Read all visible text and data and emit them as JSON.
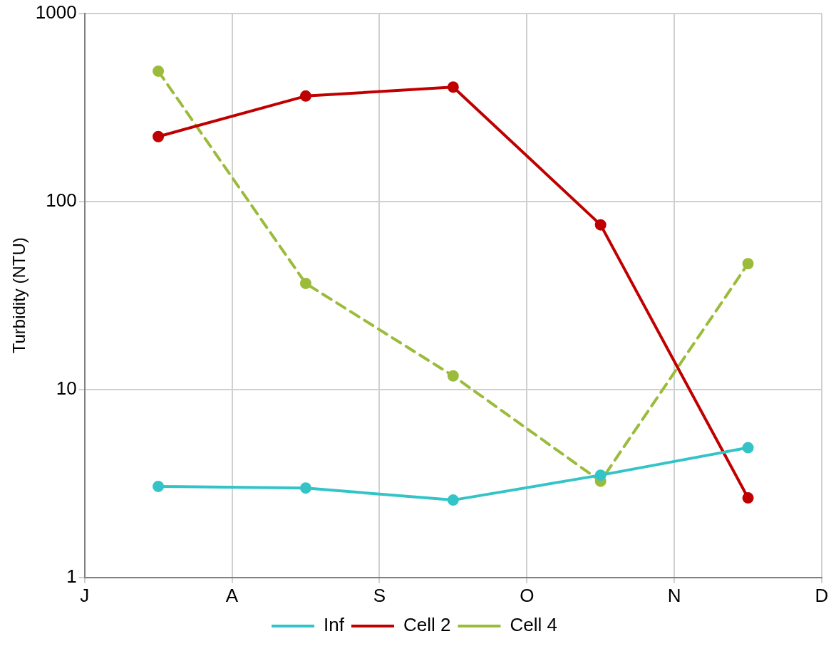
{
  "chart_data": {
    "type": "line",
    "ylabel": "Turbidity (NTU)",
    "categories": [
      "J",
      null,
      "A",
      null,
      "S",
      null,
      "O",
      null,
      "N",
      null,
      "D"
    ],
    "series": [
      {
        "name": "Inf",
        "color": "#33c4c8",
        "values": [
          null,
          3.05,
          null,
          2.99,
          null,
          2.58,
          null,
          3.5,
          null,
          4.9,
          null
        ]
      },
      {
        "name": "Cell 2",
        "color": "#c00000",
        "values": [
          null,
          221,
          null,
          363,
          null,
          405,
          null,
          75,
          null,
          2.65,
          null
        ]
      },
      {
        "name": "Cell 4",
        "color": "#9bbb3b",
        "line_style": "dashed",
        "values": [
          null,
          492,
          null,
          36.6,
          null,
          11.8,
          null,
          3.25,
          null,
          46.6,
          null
        ]
      }
    ],
    "ylim": [
      1,
      1000
    ],
    "yticks": [
      1,
      10,
      100,
      1000
    ],
    "log": true,
    "grid": true,
    "legend": "bottom",
    "marker": "circle"
  }
}
